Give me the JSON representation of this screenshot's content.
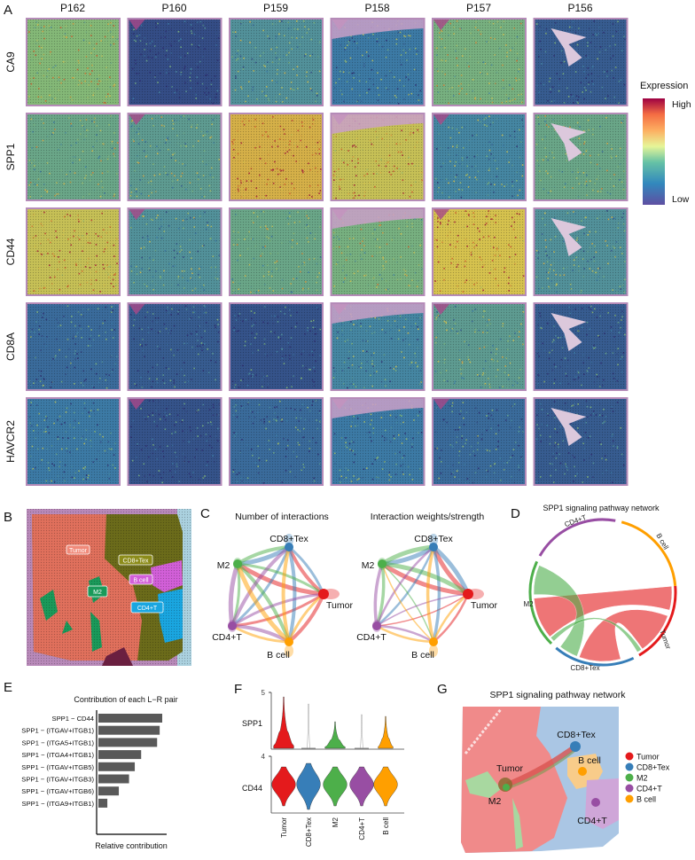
{
  "panel_labels": [
    "A",
    "B",
    "C",
    "D",
    "E",
    "F",
    "G"
  ],
  "panel_a": {
    "samples": [
      "P162",
      "P160",
      "P159",
      "P158",
      "P157",
      "P156"
    ],
    "genes": [
      "CA9",
      "SPP1",
      "CD44",
      "CD8A",
      "HAVCR2"
    ],
    "expression_level": [
      [
        0.55,
        0.1,
        0.35,
        0.25,
        0.5,
        0.15
      ],
      [
        0.45,
        0.4,
        0.85,
        0.75,
        0.3,
        0.45
      ],
      [
        0.75,
        0.35,
        0.45,
        0.5,
        0.8,
        0.35
      ],
      [
        0.2,
        0.15,
        0.12,
        0.3,
        0.4,
        0.15
      ],
      [
        0.25,
        0.12,
        0.2,
        0.25,
        0.2,
        0.15
      ]
    ],
    "legend": {
      "title": "Expression",
      "high": "High",
      "low": "Low"
    },
    "color_scale": [
      "#2f2f72",
      "#3d7fa8",
      "#7fb77a",
      "#d6c24e",
      "#d2642e",
      "#a5213a"
    ]
  },
  "cell_types": [
    {
      "name": "Tumor",
      "color": "#e41a1c"
    },
    {
      "name": "CD8+Tex",
      "color": "#377eb8"
    },
    {
      "name": "M2",
      "color": "#4daf4a"
    },
    {
      "name": "CD4+T",
      "color": "#984ea3"
    },
    {
      "name": "B cell",
      "color": "#ff9f00"
    }
  ],
  "panel_b": {
    "labels": [
      "Tumor",
      "CD8+Tex",
      "M2",
      "B cell",
      "CD4+T"
    ]
  },
  "panel_c": {
    "titles": [
      "Number of interactions",
      "Interaction weights/strength"
    ]
  },
  "panel_d": {
    "title": "SPP1 signaling pathway network"
  },
  "panel_g": {
    "title": "SPP1 signaling pathway network"
  },
  "chart_data": [
    {
      "type": "bar",
      "orientation": "horizontal",
      "title": "Contribution of each L−R pair",
      "xlabel": "Relative contribution",
      "categories": [
        "SPP1 − CD44",
        "SPP1 − (ITGAV+ITGB1)",
        "SPP1 − (ITGA5+ITGB1)",
        "SPP1 − (ITGA4+ITGB1)",
        "SPP1 − (ITGAV+ITGB5)",
        "SPP1 − (ITGAV+ITGB3)",
        "SPP1 − (ITGAV+ITGB6)",
        "SPP1 − (ITGA9+ITGB1)"
      ],
      "values": [
        1.0,
        0.96,
        0.92,
        0.67,
        0.57,
        0.48,
        0.32,
        0.14
      ],
      "color": "#595959"
    },
    {
      "type": "violin",
      "categories": [
        "Tumor",
        "CD8+Tex",
        "M2",
        "CD4+T",
        "B cell"
      ],
      "genes": [
        "SPP1",
        "CD44"
      ],
      "yticks": [
        "5",
        "4"
      ]
    }
  ]
}
